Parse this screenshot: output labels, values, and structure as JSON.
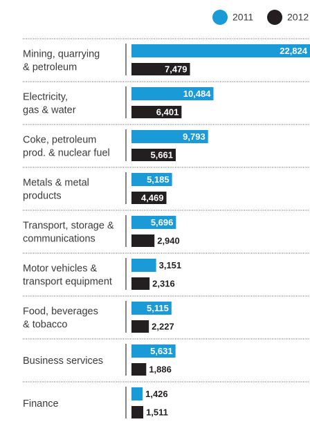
{
  "chart_data": {
    "type": "bar",
    "orientation": "horizontal",
    "categories": [
      "Mining, quarrying\n& petroleum",
      "Electricity,\ngas & water",
      "Coke, petroleum\nprod. & nuclear fuel",
      "Metals & metal\nproducts",
      "Transport, storage &\ncommunications",
      "Motor vehicles &\ntransport equipment",
      "Food, beverages\n& tobacco",
      "Business services",
      "Finance"
    ],
    "series": [
      {
        "name": "2011",
        "color": "#1a9ad6",
        "values": [
          22824,
          10484,
          9793,
          5185,
          5696,
          3151,
          5115,
          5631,
          1426
        ],
        "value_labels": [
          "22,824",
          "10,484",
          "9,793",
          "5,185",
          "5,696",
          "3,151",
          "5,115",
          "5,631",
          "1,426"
        ]
      },
      {
        "name": "2012",
        "color": "#231f20",
        "values": [
          7479,
          6401,
          5661,
          4469,
          2940,
          2316,
          2227,
          1886,
          1511
        ],
        "value_labels": [
          "7,479",
          "6,401",
          "5,661",
          "4,469",
          "2,940",
          "2,316",
          "2,227",
          "1,886",
          "1,511"
        ]
      }
    ]
  }
}
